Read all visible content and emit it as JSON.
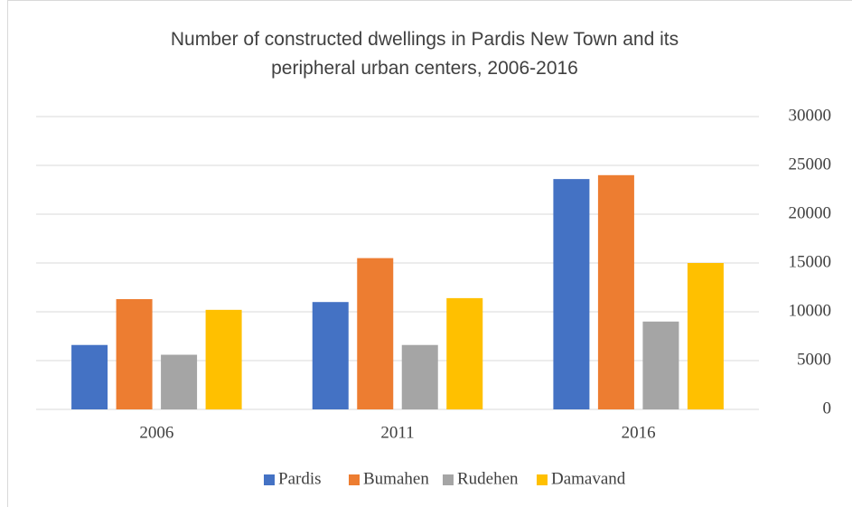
{
  "chart_data": {
    "type": "bar",
    "title": "Number of constructed dwellings in Pardis New Town and its peripheral urban centers, 2006-2016",
    "categories": [
      "2006",
      "2011",
      "2016"
    ],
    "series": [
      {
        "name": "Pardis",
        "color": "#4472c4",
        "values": [
          6600,
          11000,
          23600
        ]
      },
      {
        "name": "Bumahen",
        "color": "#ed7d31",
        "values": [
          11300,
          15500,
          24000
        ]
      },
      {
        "name": "Rudehen",
        "color": "#a5a5a5",
        "values": [
          5600,
          6600,
          9000
        ]
      },
      {
        "name": "Damavand",
        "color": "#ffc000",
        "values": [
          10200,
          11400,
          15000
        ]
      }
    ],
    "ylim": [
      0,
      30000
    ],
    "yticks": [
      0,
      5000,
      10000,
      15000,
      20000,
      25000,
      30000
    ],
    "grid": true,
    "y_axis_side": "right",
    "legend": "bottom"
  }
}
